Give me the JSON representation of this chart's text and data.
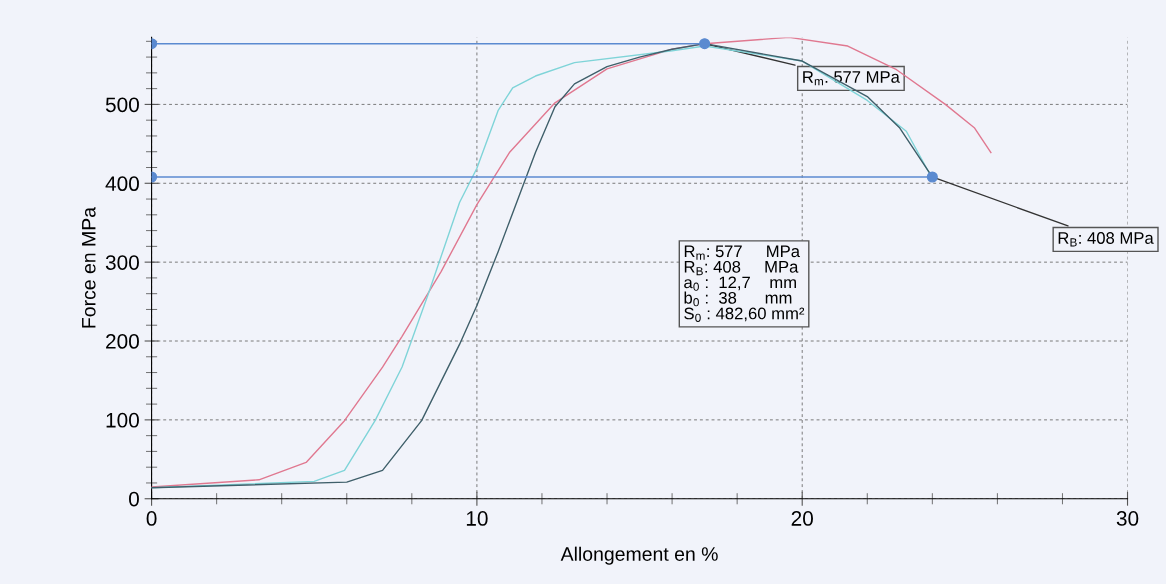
{
  "chart_data": {
    "type": "line",
    "xlabel": "Allongement en %",
    "ylabel": "Force en MPa",
    "xlim": [
      0,
      30
    ],
    "ylim": [
      0,
      585
    ],
    "xticks": [
      0,
      10,
      20,
      30
    ],
    "yticks": [
      0,
      100,
      200,
      300,
      400,
      500
    ],
    "grid": true,
    "series": [
      {
        "color": "#e07890",
        "x": [
          0,
          3.3,
          4.75,
          5.93,
          7.1,
          7.7,
          8.9,
          10,
          11,
          12.4,
          14,
          16,
          17,
          19.6,
          21.4,
          22.9,
          24.4,
          25.3,
          25.8
        ],
        "values": [
          15,
          24,
          46,
          99,
          167,
          206,
          288,
          373,
          439,
          502,
          545,
          570,
          577,
          585,
          574,
          544,
          500,
          470,
          439
        ]
      },
      {
        "color": "#7fd4d8",
        "x": [
          0,
          5,
          5.93,
          6.87,
          7.7,
          8.5,
          9.47,
          10,
          10.65,
          11.1,
          11.8,
          13,
          16,
          17,
          20,
          22,
          23.2,
          23.85,
          24
        ],
        "values": [
          14,
          22,
          36,
          99,
          167,
          259,
          376,
          419,
          492,
          521,
          536,
          553,
          568,
          574,
          555,
          505,
          466,
          417,
          408
        ]
      },
      {
        "color": "#3f5f6a",
        "x": [
          0,
          6,
          7.1,
          8.3,
          9.47,
          10,
          10.65,
          11.8,
          12.4,
          13,
          14,
          15,
          16,
          17,
          20,
          22,
          23,
          24
        ],
        "values": [
          14,
          21,
          36,
          99,
          196,
          245,
          313,
          439,
          497,
          526,
          548,
          560,
          570,
          577,
          555,
          510,
          470,
          408
        ]
      },
      {
        "color": "#5b8ad0",
        "x": [
          0,
          17
        ],
        "values": [
          577,
          577
        ],
        "marker": "circle"
      },
      {
        "color": "#5b8ad0",
        "x": [
          0,
          24
        ],
        "values": [
          408,
          408
        ],
        "marker": "circle"
      }
    ],
    "annotations": [
      {
        "text": "R$_{m}$: 577 MPa",
        "x": 17,
        "y": 577
      },
      {
        "text": "R$_{B}$: 408 MPa",
        "x": 24,
        "y": 408
      },
      "R$_{m}$: 577     MPa",
      "R$_{B}$: 408     MPa",
      "a$_{0}$ :  12,7    mm",
      "b$_{0}$ :  38      mm",
      "S$_{0}$ : 482,60 mm²"
    ]
  }
}
